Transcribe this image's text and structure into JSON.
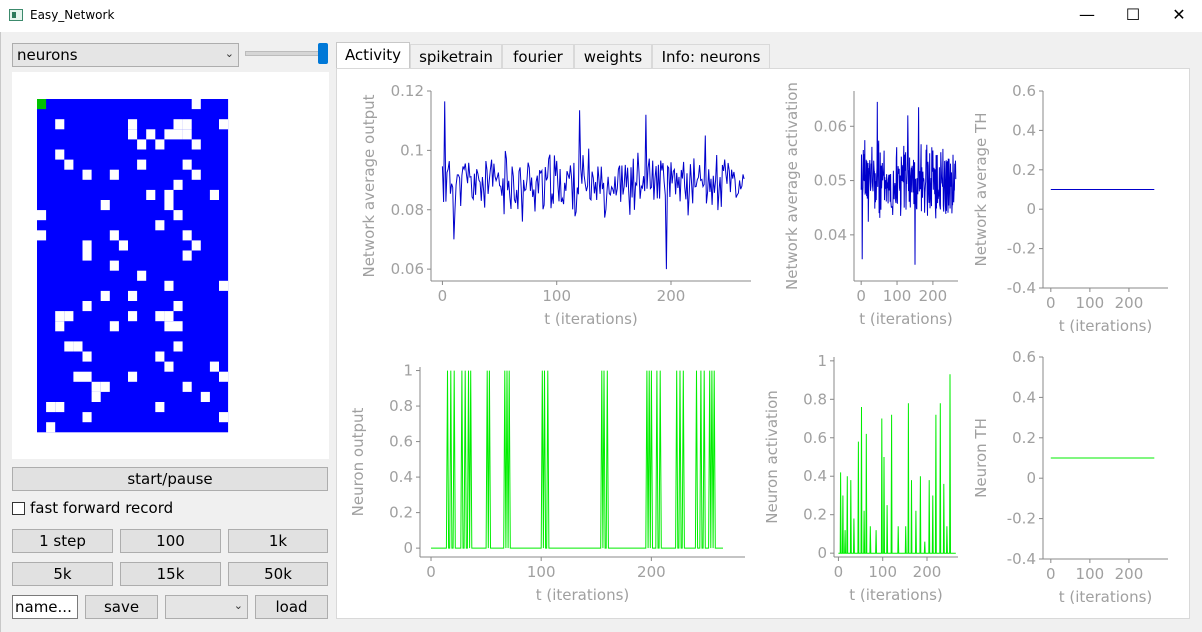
{
  "window": {
    "title": "Easy_Network",
    "minimize": "—",
    "maximize": "☐",
    "close": "✕"
  },
  "left": {
    "dropdown_value": "neurons",
    "slider_fraction": 1.0,
    "neuron_grid": {
      "rows": 25,
      "cols": 20,
      "active_color": "#0000ff",
      "inactive_color": "#ffffff",
      "selected_color": "#00c000",
      "selected_cell": [
        0,
        0
      ],
      "white_cells": [
        [
          -1,
          5
        ],
        [
          -1,
          17
        ],
        [
          0,
          17
        ],
        [
          2,
          2
        ],
        [
          2,
          10
        ],
        [
          2,
          15
        ],
        [
          2,
          16
        ],
        [
          2,
          20
        ],
        [
          3,
          10
        ],
        [
          3,
          12
        ],
        [
          3,
          14
        ],
        [
          3,
          15
        ],
        [
          3,
          16
        ],
        [
          4,
          11
        ],
        [
          4,
          13
        ],
        [
          4,
          17
        ],
        [
          5,
          2
        ],
        [
          6,
          3
        ],
        [
          6,
          11
        ],
        [
          6,
          16
        ],
        [
          7,
          5
        ],
        [
          7,
          8
        ],
        [
          7,
          17
        ],
        [
          8,
          15
        ],
        [
          9,
          12
        ],
        [
          9,
          14
        ],
        [
          9,
          19
        ],
        [
          10,
          7
        ],
        [
          10,
          14
        ],
        [
          11,
          0
        ],
        [
          11,
          15
        ],
        [
          12,
          13
        ],
        [
          13,
          0
        ],
        [
          13,
          8
        ],
        [
          13,
          16
        ],
        [
          14,
          5
        ],
        [
          14,
          9
        ],
        [
          14,
          17
        ],
        [
          15,
          5
        ],
        [
          15,
          16
        ],
        [
          16,
          8
        ],
        [
          17,
          11
        ],
        [
          18,
          14
        ],
        [
          18,
          20
        ],
        [
          19,
          7
        ],
        [
          19,
          10
        ],
        [
          20,
          5
        ],
        [
          20,
          15
        ],
        [
          21,
          2
        ],
        [
          21,
          3
        ],
        [
          21,
          10
        ],
        [
          21,
          13
        ],
        [
          21,
          14
        ],
        [
          22,
          2
        ],
        [
          22,
          8
        ],
        [
          22,
          14
        ],
        [
          22,
          15
        ],
        [
          24,
          3
        ],
        [
          24,
          4
        ],
        [
          24,
          15
        ],
        [
          25,
          5
        ],
        [
          25,
          13
        ],
        [
          26,
          14
        ],
        [
          26,
          19
        ],
        [
          27,
          4
        ],
        [
          27,
          5
        ],
        [
          27,
          10
        ],
        [
          27,
          20
        ],
        [
          28,
          6
        ],
        [
          28,
          7
        ],
        [
          28,
          16
        ],
        [
          29,
          6
        ],
        [
          29,
          18
        ],
        [
          30,
          1
        ],
        [
          30,
          2
        ],
        [
          30,
          13
        ],
        [
          31,
          5
        ],
        [
          31,
          20
        ],
        [
          32,
          1
        ]
      ]
    },
    "start_pause": "start/pause",
    "fast_forward_label": "fast forward record",
    "fast_forward_checked": false,
    "step_buttons": [
      "1 step",
      "100",
      "1k",
      "5k",
      "15k",
      "50k"
    ],
    "name_placeholder": "name...",
    "save": "save",
    "load_dropdown_value": "",
    "load": "load"
  },
  "tabs": [
    "Activity",
    "spiketrain",
    "fourier",
    "weights",
    "Info: neurons"
  ],
  "active_tab": "Activity",
  "colors": {
    "network_series": "#0000cc",
    "neuron_series": "#00ee00",
    "axis_text": "#a0a0a0"
  },
  "chart_data": [
    {
      "id": "net-output",
      "type": "line",
      "ylabel": "Network average output",
      "xlabel": "t (iterations)",
      "xlim": [
        -10,
        270
      ],
      "ylim": [
        0.056,
        0.12
      ],
      "xticks": [
        0,
        100,
        200
      ],
      "xtick_labels": [
        "0",
        "100",
        "200"
      ],
      "yticks": [
        0.06,
        0.08,
        0.1,
        0.12
      ],
      "ytick_labels": [
        "0.06",
        "0.08",
        "0.1",
        "0.12"
      ],
      "series": [
        {
          "color": "#0000cc",
          "mean": 0.089,
          "amp": 0.008,
          "seed": 11,
          "n": 265,
          "peaks": [
            [
              2,
              0.1165
            ],
            [
              10,
              0.07
            ],
            [
              120,
              0.1135
            ],
            [
              196,
              0.06
            ],
            [
              178,
              0.112
            ],
            [
              230,
              0.105
            ],
            [
              70,
              0.076
            ]
          ]
        }
      ]
    },
    {
      "id": "net-activation",
      "type": "line",
      "ylabel": "Network average activation",
      "xlabel": "t (iterations)",
      "xlim": [
        -20,
        270
      ],
      "ylim": [
        0.0315,
        0.0665
      ],
      "xticks": [
        0,
        100,
        200
      ],
      "xtick_labels": [
        "0",
        "100",
        "200"
      ],
      "yticks": [
        0.04,
        0.05,
        0.06
      ],
      "ytick_labels": [
        "0.04",
        "0.05",
        "0.06"
      ],
      "series": [
        {
          "color": "#0000cc",
          "mean": 0.05,
          "amp": 0.0055,
          "seed": 23,
          "n": 265,
          "peaks": [
            [
              3,
              0.0355
            ],
            [
              45,
              0.0645
            ],
            [
              150,
              0.0345
            ],
            [
              160,
              0.0635
            ],
            [
              130,
              0.062
            ]
          ]
        }
      ]
    },
    {
      "id": "net-th",
      "type": "line",
      "ylabel": "Network average TH",
      "xlabel": "t (iterations)",
      "xlim": [
        -20,
        300
      ],
      "ylim": [
        -0.4,
        0.6
      ],
      "xticks": [
        0,
        100,
        200
      ],
      "xtick_labels": [
        "0",
        "100",
        "200"
      ],
      "yticks": [
        -0.4,
        -0.2,
        0,
        0.2,
        0.4,
        0.6
      ],
      "ytick_labels": [
        "-0.4",
        "-0.2",
        "0",
        "0.2",
        "0.4",
        "0.6"
      ],
      "series": [
        {
          "color": "#0000cc",
          "x": [
            0,
            265
          ],
          "y": [
            0.1,
            0.1
          ]
        }
      ]
    },
    {
      "id": "neuron-output",
      "type": "line",
      "ylabel": "Neuron output",
      "xlabel": "t (iterations)",
      "xlim": [
        -10,
        285
      ],
      "ylim": [
        -0.05,
        1.02
      ],
      "xticks": [
        0,
        100,
        200
      ],
      "xtick_labels": [
        "0",
        "100",
        "200"
      ],
      "yticks": [
        0,
        0.2,
        0.4,
        0.6,
        0.8,
        1
      ],
      "ytick_labels": [
        "0",
        "0.2",
        "0.4",
        "0.6",
        "0.8",
        "1"
      ],
      "series": [
        {
          "color": "#00ee00",
          "spike_mode": true,
          "spikes": [
            15,
            18,
            21,
            28,
            31,
            34,
            36,
            51,
            53,
            67,
            69,
            71,
            101,
            103,
            106,
            155,
            157,
            160,
            196,
            198,
            200,
            205,
            208,
            223,
            226,
            229,
            241,
            245,
            248,
            253,
            255,
            257
          ]
        }
      ]
    },
    {
      "id": "neuron-activation",
      "type": "line",
      "ylabel": "Neuron activation",
      "xlabel": "t (iterations)",
      "xlim": [
        -10,
        270
      ],
      "ylim": [
        -0.02,
        1.02
      ],
      "xticks": [
        0,
        100,
        200
      ],
      "xtick_labels": [
        "0",
        "100",
        "200"
      ],
      "yticks": [
        0,
        0.2,
        0.4,
        0.6,
        0.8,
        1
      ],
      "ytick_labels": [
        "0",
        "0.2",
        "0.4",
        "0.6",
        "0.8",
        "1"
      ],
      "series": [
        {
          "color": "#00ee00",
          "spike_mode": true,
          "spikes": [
            [
              5,
              0.42
            ],
            [
              10,
              0.3
            ],
            [
              15,
              0.12
            ],
            [
              20,
              0.4
            ],
            [
              28,
              0.38
            ],
            [
              35,
              0.18
            ],
            [
              45,
              0.58
            ],
            [
              52,
              0.76
            ],
            [
              58,
              0.22
            ],
            [
              63,
              0.62
            ],
            [
              72,
              0.14
            ],
            [
              85,
              0.12
            ],
            [
              98,
              0.7
            ],
            [
              103,
              0.5
            ],
            [
              110,
              0.25
            ],
            [
              120,
              0.72
            ],
            [
              135,
              0.14
            ],
            [
              152,
              0.14
            ],
            [
              158,
              0.78
            ],
            [
              165,
              0.38
            ],
            [
              175,
              0.22
            ],
            [
              185,
              0.4
            ],
            [
              195,
              0.06
            ],
            [
              205,
              0.38
            ],
            [
              213,
              0.3
            ],
            [
              220,
              0.72
            ],
            [
              230,
              0.78
            ],
            [
              238,
              0.36
            ],
            [
              245,
              0.14
            ],
            [
              252,
              0.93
            ]
          ]
        }
      ]
    },
    {
      "id": "neuron-th",
      "type": "line",
      "ylabel": "Neuron TH",
      "xlabel": "t (iterations)",
      "xlim": [
        -20,
        300
      ],
      "ylim": [
        -0.4,
        0.6
      ],
      "xticks": [
        0,
        100,
        200
      ],
      "xtick_labels": [
        "0",
        "100",
        "200"
      ],
      "yticks": [
        -0.4,
        -0.2,
        0,
        0.2,
        0.4,
        0.6
      ],
      "ytick_labels": [
        "-0.4",
        "-0.2",
        "0",
        "0.2",
        "0.4",
        "0.6"
      ],
      "series": [
        {
          "color": "#00ee00",
          "x": [
            0,
            265
          ],
          "y": [
            0.1,
            0.1
          ]
        }
      ]
    }
  ]
}
